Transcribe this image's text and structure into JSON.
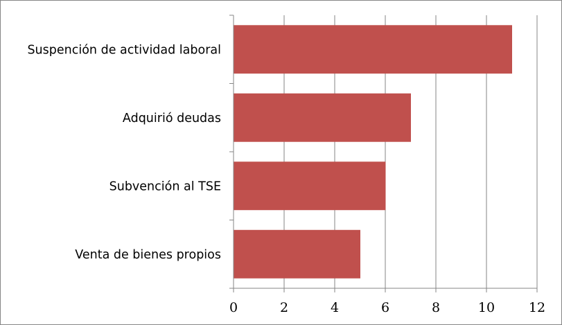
{
  "chart_data": {
    "type": "bar",
    "orientation": "horizontal",
    "categories": [
      "Suspención de actividad laboral",
      "Adquirió deudas",
      "Subvención al TSE",
      "Venta de bienes propios"
    ],
    "values": [
      11,
      7,
      6,
      5
    ],
    "title": "",
    "xlabel": "",
    "ylabel": "",
    "xlim": [
      0,
      12
    ],
    "x_ticks": [
      "0",
      "2",
      "4",
      "6",
      "8",
      "10",
      "12"
    ],
    "grid": "vertical-major",
    "legend": "none",
    "colors": {
      "bar": "#c0504d",
      "grid": "#868686",
      "axis": "#868686"
    }
  }
}
